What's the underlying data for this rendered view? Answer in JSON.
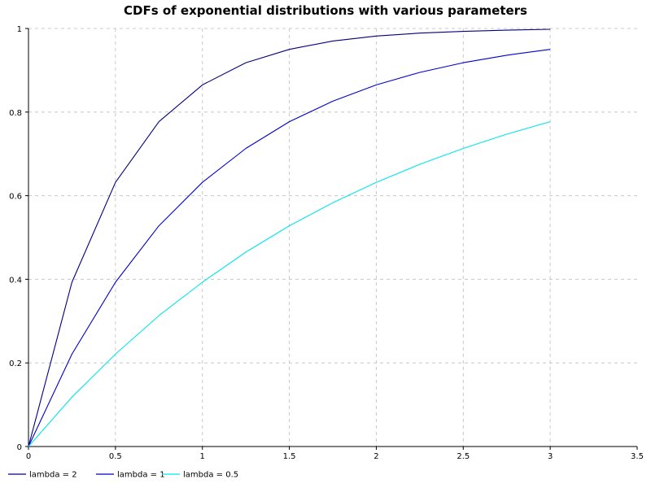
{
  "chart_data": {
    "type": "line",
    "title": "CDFs of exponential distributions with various parameters",
    "xlabel": "",
    "ylabel": "",
    "xlim": [
      0,
      3.5
    ],
    "ylim": [
      0,
      1
    ],
    "x_ticks": [
      "0",
      "0.5",
      "1",
      "1.5",
      "2",
      "2.5",
      "3",
      "3.5"
    ],
    "y_ticks": [
      "0",
      "0.2",
      "0.4",
      "0.6",
      "0.8",
      "1"
    ],
    "grid": true,
    "legend_position": "bottom",
    "x": [
      0,
      0.25,
      0.5,
      0.75,
      1,
      1.25,
      1.5,
      1.75,
      2,
      2.25,
      2.5,
      2.75,
      3
    ],
    "series": [
      {
        "name": "lambda = 2",
        "color": "#000080",
        "values": [
          0,
          0.393,
          0.632,
          0.777,
          0.865,
          0.918,
          0.95,
          0.97,
          0.982,
          0.989,
          0.993,
          0.996,
          0.998
        ]
      },
      {
        "name": "lambda = 1",
        "color": "#0000cc",
        "values": [
          0,
          0.221,
          0.393,
          0.528,
          0.632,
          0.713,
          0.777,
          0.826,
          0.865,
          0.895,
          0.918,
          0.936,
          0.95
        ]
      },
      {
        "name": "lambda = 0.5",
        "color": "#00e5ee",
        "values": [
          0,
          0.118,
          0.221,
          0.313,
          0.393,
          0.465,
          0.528,
          0.583,
          0.632,
          0.675,
          0.713,
          0.747,
          0.777
        ]
      }
    ]
  }
}
